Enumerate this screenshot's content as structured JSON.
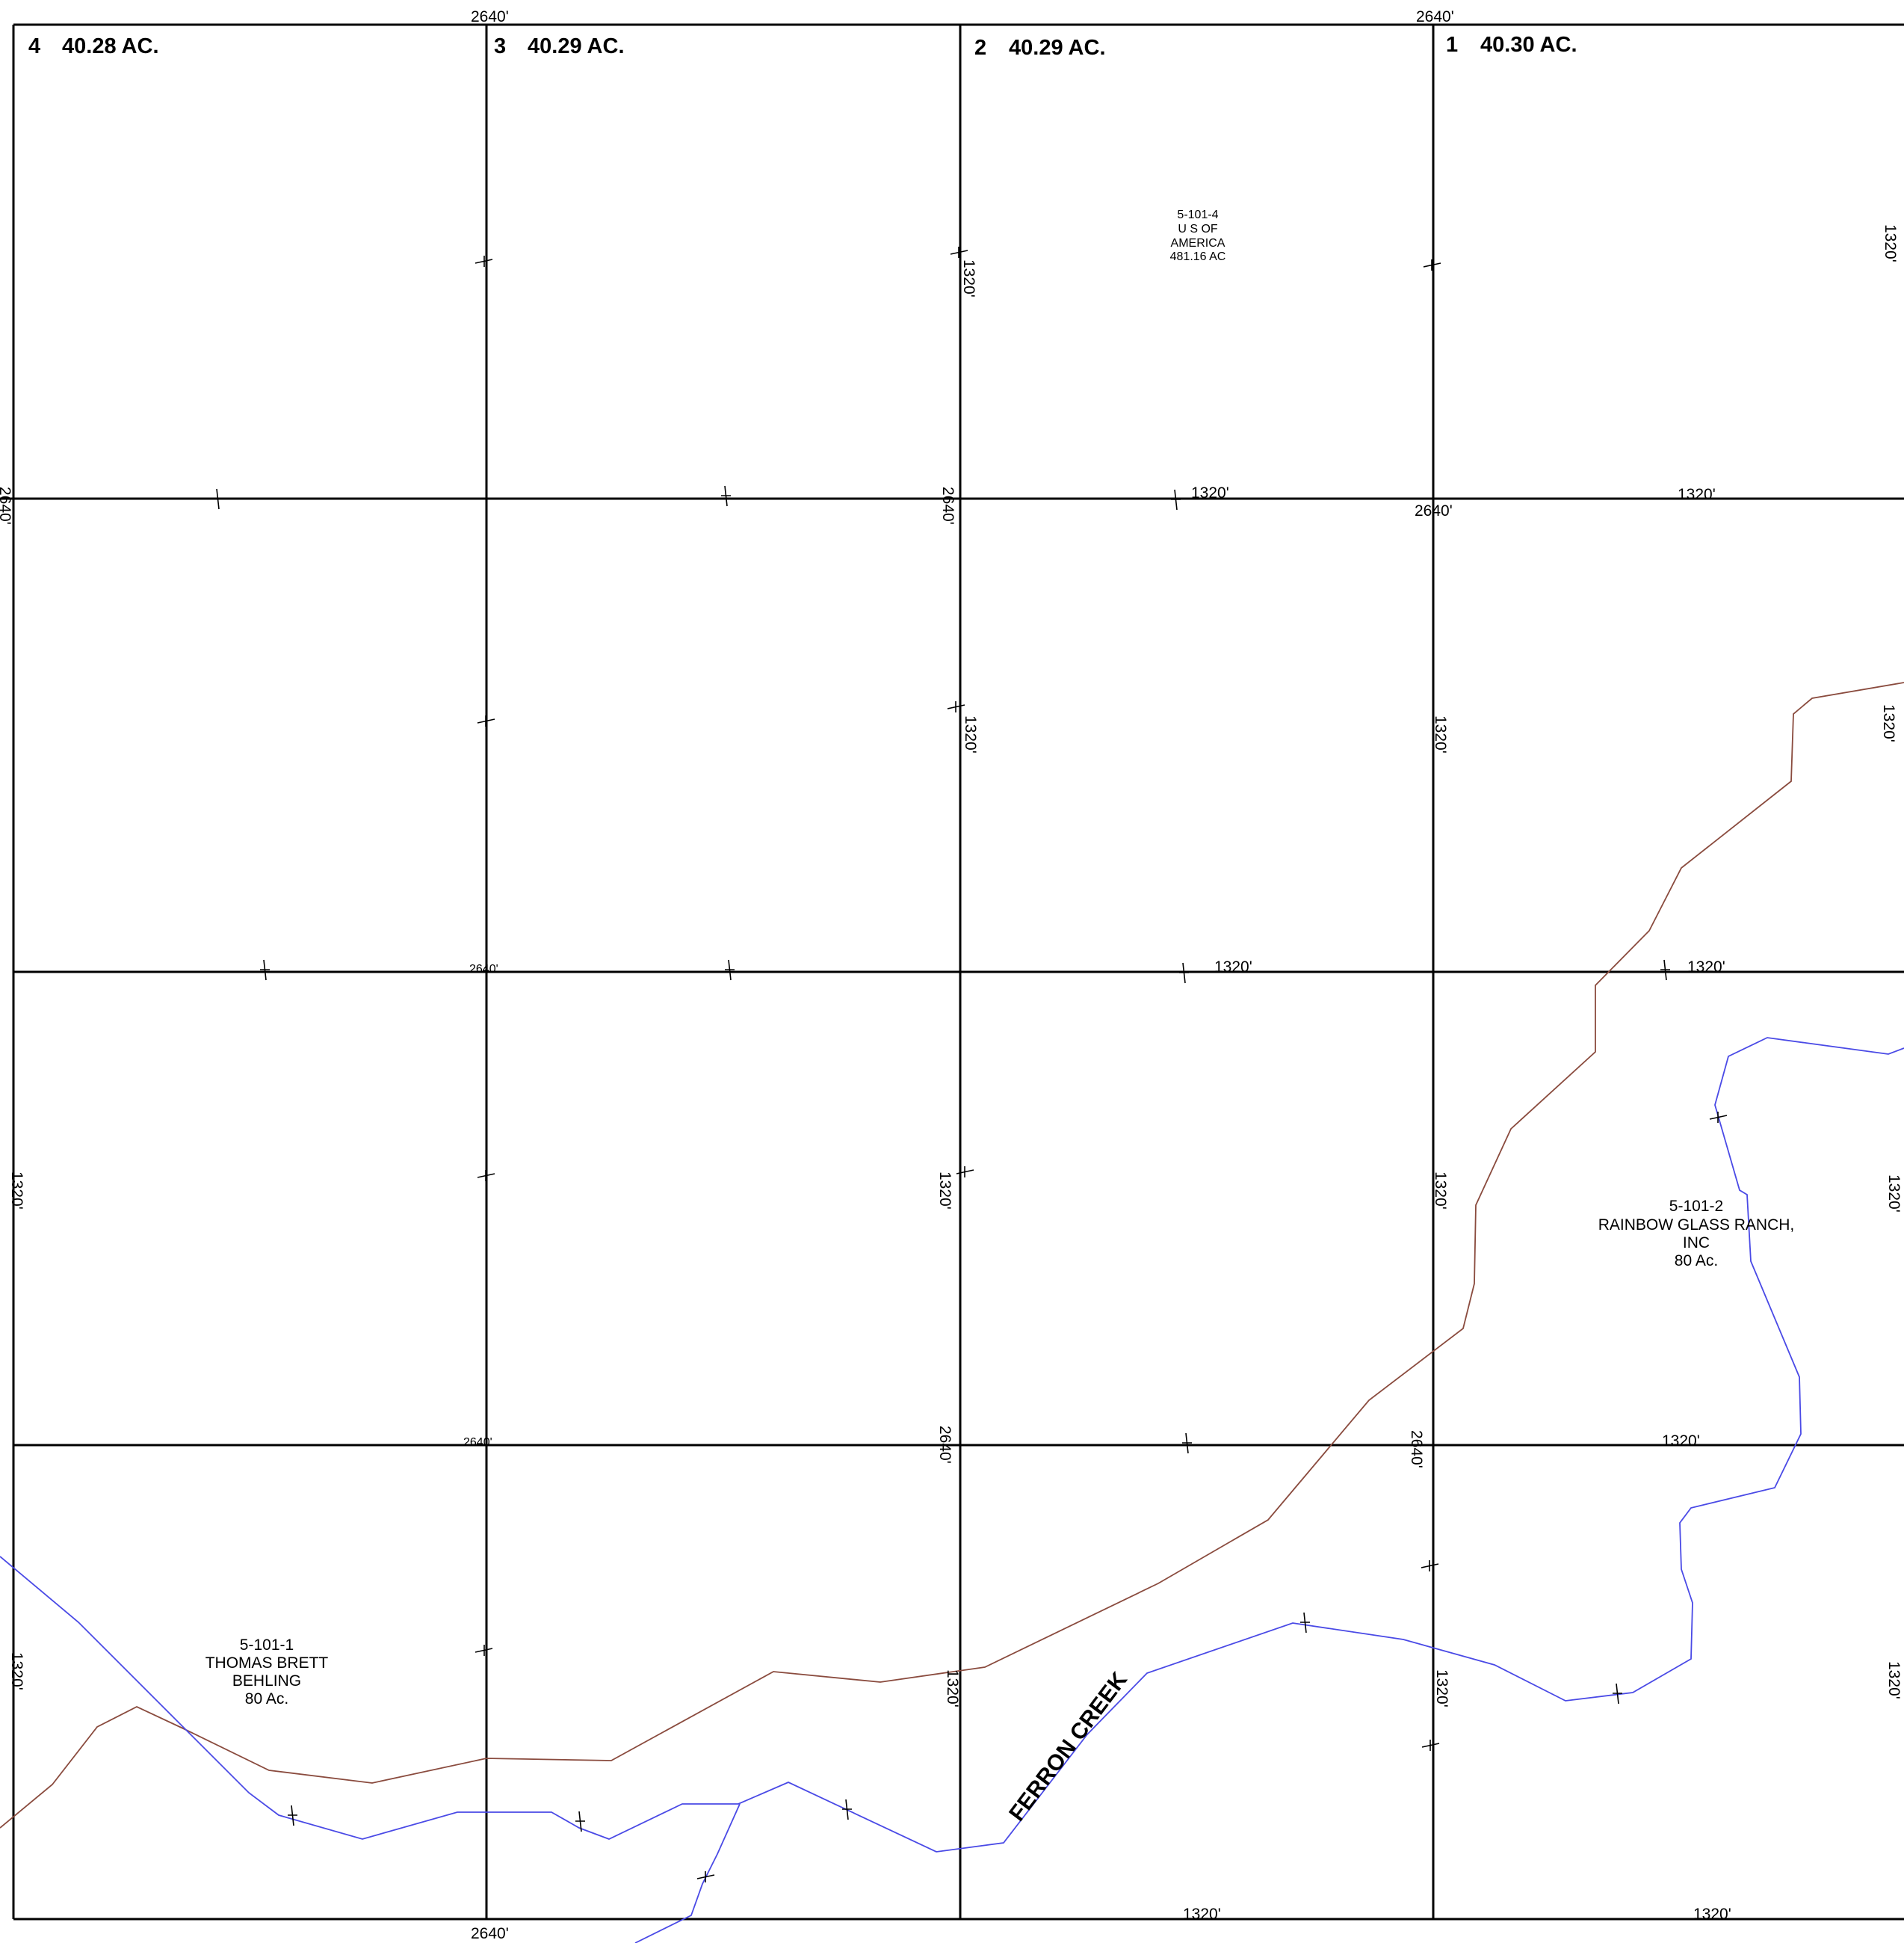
{
  "lots": [
    {
      "number": "4",
      "acres": "40.28 AC."
    },
    {
      "number": "3",
      "acres": "40.29 AC."
    },
    {
      "number": "2",
      "acres": "40.29 AC."
    },
    {
      "number": "1",
      "acres": "40.30 AC."
    }
  ],
  "parcels": [
    {
      "id": "5-101-4",
      "owner": "U S OF",
      "owner2": "AMERICA",
      "area": "481.16 AC"
    },
    {
      "id": "5-101-2",
      "owner": "RAINBOW GLASS RANCH,",
      "owner2": "INC",
      "area": "80 Ac."
    },
    {
      "id": "5-101-1",
      "owner": "THOMAS BRETT",
      "owner2": "BEHLING",
      "area": "80 Ac."
    }
  ],
  "creek_label": "FERRON CREEK",
  "dimensions": {
    "d2640": "2640'",
    "d1320": "1320'"
  },
  "line_colors": {
    "road": "#8a4b3e",
    "water": "#4a4ae6",
    "grid": "#000000"
  }
}
